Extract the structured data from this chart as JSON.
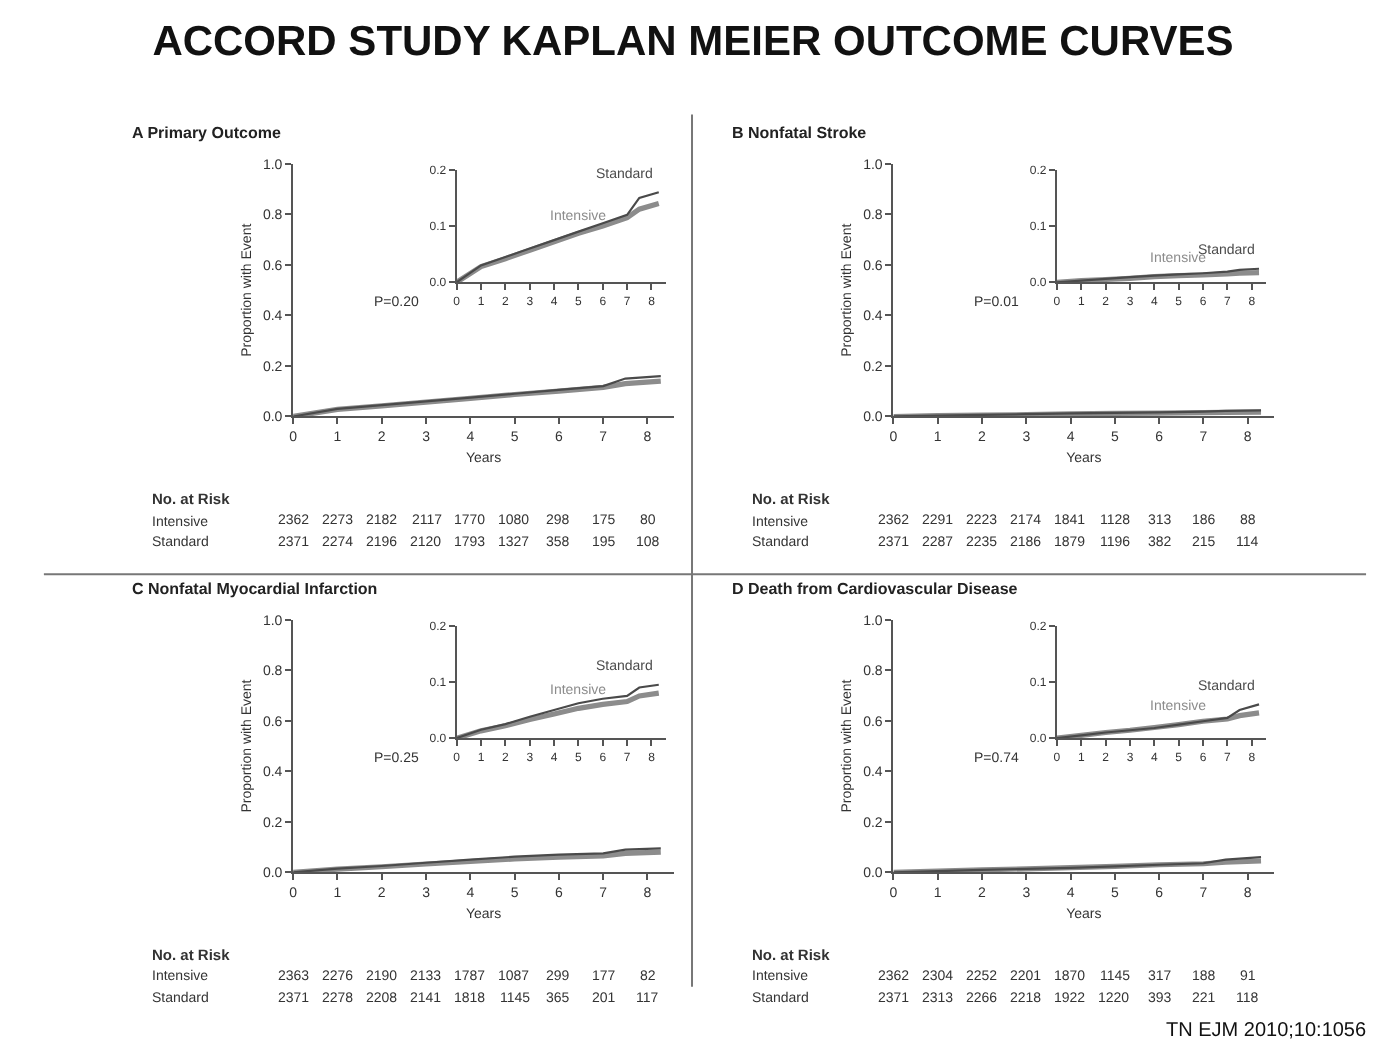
{
  "chart_data": [
    {
      "type": "other",
      "title": "ACCORD STUDY KAPLAN MEIER OUTCOME CURVES",
      "annotations": [
        "TN EJM 2010;10:1056"
      ]
    },
    {
      "type": "line",
      "title": "A Primary Outcome",
      "xlabel": "Years",
      "ylabel": "Proportion with Event",
      "x": [
        0,
        1,
        2,
        3,
        4,
        5,
        6,
        7,
        7.5,
        8.3
      ],
      "xlim": [
        0,
        8.6
      ],
      "xticks": [
        0,
        1,
        2,
        3,
        4,
        5,
        6,
        7,
        8
      ],
      "ylim": [
        0,
        1
      ],
      "yticks": [
        {
          "value": 0,
          "label": "0.0"
        },
        {
          "value": 0.2,
          "label": "0.2"
        },
        {
          "value": 0.4,
          "label": "0.4"
        },
        {
          "value": 0.6,
          "label": "0.6"
        },
        {
          "value": 0.8,
          "label": "0.8"
        },
        {
          "value": 1,
          "label": "1.0"
        }
      ],
      "series": [
        {
          "color": "#8c8c8c",
          "values": [
            0,
            0.028,
            0.042,
            0.057,
            0.072,
            0.087,
            0.1,
            0.115,
            0.13,
            0.14
          ]
        },
        {
          "color": "#4a4a4a",
          "values": [
            0,
            0.03,
            0.045,
            0.06,
            0.075,
            0.09,
            0.105,
            0.12,
            0.15,
            0.16
          ]
        }
      ],
      "annotations": [
        "P=0.20",
        "No. at Risk",
        "Intensive 2362 2273 2182 2117 1770 1080 298 175 80",
        "Standard 2371 2274 2196 2120 1793 1327 358 195 108"
      ]
    },
    {
      "type": "line",
      "x": [
        0,
        1,
        2,
        3,
        4,
        5,
        6,
        7,
        7.5,
        8.3
      ],
      "xlim": [
        0,
        8.6
      ],
      "xticks": [
        0,
        1,
        2,
        3,
        4,
        5,
        6,
        7,
        8
      ],
      "ylim": [
        0,
        0.2
      ],
      "yticks": [
        {
          "value": 0,
          "label": "0.0"
        },
        {
          "value": 0.1,
          "label": "0.1"
        },
        {
          "value": 0.2,
          "label": "0.2"
        }
      ],
      "series": [
        {
          "name": "Intensive",
          "color": "#8c8c8c",
          "values": [
            0,
            0.028,
            0.042,
            0.057,
            0.072,
            0.087,
            0.1,
            0.115,
            0.13,
            0.14
          ]
        },
        {
          "name": "Standard",
          "color": "#4a4a4a",
          "values": [
            0,
            0.03,
            0.045,
            0.06,
            0.075,
            0.09,
            0.105,
            0.12,
            0.15,
            0.16
          ]
        }
      ]
    },
    {
      "type": "line",
      "title": "B Nonfatal Stroke",
      "xlabel": "Years",
      "ylabel": "Proportion with Event",
      "x": [
        0,
        1,
        2,
        3,
        4,
        5,
        6,
        7,
        7.5,
        8.3
      ],
      "xlim": [
        0,
        8.6
      ],
      "xticks": [
        0,
        1,
        2,
        3,
        4,
        5,
        6,
        7,
        8
      ],
      "ylim": [
        0,
        1
      ],
      "yticks": [
        {
          "value": 0,
          "label": "0.0"
        },
        {
          "value": 0.2,
          "label": "0.2"
        },
        {
          "value": 0.4,
          "label": "0.4"
        },
        {
          "value": 0.6,
          "label": "0.6"
        },
        {
          "value": 0.8,
          "label": "0.8"
        },
        {
          "value": 1,
          "label": "1.0"
        }
      ],
      "series": [
        {
          "color": "#8c8c8c",
          "values": [
            0,
            0.003,
            0.005,
            0.007,
            0.01,
            0.012,
            0.013,
            0.015,
            0.016,
            0.017
          ]
        },
        {
          "color": "#4a4a4a",
          "values": [
            0,
            0.003,
            0.006,
            0.009,
            0.012,
            0.014,
            0.016,
            0.019,
            0.022,
            0.024
          ]
        }
      ],
      "annotations": [
        "P=0.01",
        "No. at Risk",
        "Intensive 2362 2291 2223 2174 1841 1128 313 186 88",
        "Standard 2371 2287 2235 2186 1879 1196 382 215 114"
      ]
    },
    {
      "type": "line",
      "x": [
        0,
        1,
        2,
        3,
        4,
        5,
        6,
        7,
        7.5,
        8.3
      ],
      "xlim": [
        0,
        8.6
      ],
      "xticks": [
        0,
        1,
        2,
        3,
        4,
        5,
        6,
        7,
        8
      ],
      "ylim": [
        0,
        0.2
      ],
      "yticks": [
        {
          "value": 0,
          "label": "0.0"
        },
        {
          "value": 0.1,
          "label": "0.1"
        },
        {
          "value": 0.2,
          "label": "0.2"
        }
      ],
      "series": [
        {
          "name": "Intensive",
          "color": "#8c8c8c",
          "values": [
            0,
            0.003,
            0.005,
            0.007,
            0.01,
            0.012,
            0.013,
            0.015,
            0.016,
            0.017
          ]
        },
        {
          "name": "Standard",
          "color": "#4a4a4a",
          "values": [
            0,
            0.003,
            0.006,
            0.009,
            0.012,
            0.014,
            0.016,
            0.019,
            0.022,
            0.024
          ]
        }
      ]
    },
    {
      "type": "line",
      "title": "C Nonfatal Myocardial Infarction",
      "xlabel": "Years",
      "ylabel": "Proportion with Event",
      "x": [
        0,
        1,
        2,
        3,
        4,
        5,
        6,
        7,
        7.5,
        8.3
      ],
      "xlim": [
        0,
        8.6
      ],
      "xticks": [
        0,
        1,
        2,
        3,
        4,
        5,
        6,
        7,
        8
      ],
      "ylim": [
        0,
        1
      ],
      "yticks": [
        {
          "value": 0,
          "label": "0.0"
        },
        {
          "value": 0.2,
          "label": "0.2"
        },
        {
          "value": 0.4,
          "label": "0.4"
        },
        {
          "value": 0.6,
          "label": "0.6"
        },
        {
          "value": 0.8,
          "label": "0.8"
        },
        {
          "value": 1,
          "label": "1.0"
        }
      ],
      "series": [
        {
          "color": "#8c8c8c",
          "values": [
            0,
            0.013,
            0.022,
            0.033,
            0.043,
            0.053,
            0.06,
            0.065,
            0.075,
            0.08
          ]
        },
        {
          "color": "#4a4a4a",
          "values": [
            0,
            0.015,
            0.025,
            0.038,
            0.05,
            0.062,
            0.07,
            0.075,
            0.09,
            0.095
          ]
        }
      ],
      "annotations": [
        "P=0.25",
        "No. at Risk",
        "Intensive 2363 2276 2190 2133 1787 1087 299 177 82",
        "Standard 2371 2278 2208 2141 1818 1145 365 201 117"
      ]
    },
    {
      "type": "line",
      "x": [
        0,
        1,
        2,
        3,
        4,
        5,
        6,
        7,
        7.5,
        8.3
      ],
      "xlim": [
        0,
        8.6
      ],
      "xticks": [
        0,
        1,
        2,
        3,
        4,
        5,
        6,
        7,
        8
      ],
      "ylim": [
        0,
        0.2
      ],
      "yticks": [
        {
          "value": 0,
          "label": "0.0"
        },
        {
          "value": 0.1,
          "label": "0.1"
        },
        {
          "value": 0.2,
          "label": "0.2"
        }
      ],
      "series": [
        {
          "name": "Intensive",
          "color": "#8c8c8c",
          "values": [
            0,
            0.013,
            0.022,
            0.033,
            0.043,
            0.053,
            0.06,
            0.065,
            0.075,
            0.08
          ]
        },
        {
          "name": "Standard",
          "color": "#4a4a4a",
          "values": [
            0,
            0.015,
            0.025,
            0.038,
            0.05,
            0.062,
            0.07,
            0.075,
            0.09,
            0.095
          ]
        }
      ]
    },
    {
      "type": "line",
      "title": "D Death from Cardiovascular Disease",
      "xlabel": "Years",
      "ylabel": "Proportion with Event",
      "x": [
        0,
        1,
        2,
        3,
        4,
        5,
        6,
        7,
        7.5,
        8.3
      ],
      "xlim": [
        0,
        8.6
      ],
      "xticks": [
        0,
        1,
        2,
        3,
        4,
        5,
        6,
        7,
        8
      ],
      "ylim": [
        0,
        1
      ],
      "yticks": [
        {
          "value": 0,
          "label": "0.0"
        },
        {
          "value": 0.2,
          "label": "0.2"
        },
        {
          "value": 0.4,
          "label": "0.4"
        },
        {
          "value": 0.6,
          "label": "0.6"
        },
        {
          "value": 0.8,
          "label": "0.8"
        },
        {
          "value": 1,
          "label": "1.0"
        }
      ],
      "series": [
        {
          "color": "#8c8c8c",
          "values": [
            0,
            0.005,
            0.01,
            0.014,
            0.019,
            0.024,
            0.03,
            0.034,
            0.04,
            0.045
          ]
        },
        {
          "color": "#4a4a4a",
          "values": [
            0,
            0.005,
            0.01,
            0.014,
            0.018,
            0.024,
            0.03,
            0.036,
            0.05,
            0.06
          ]
        }
      ],
      "annotations": [
        "P=0.74",
        "No. at Risk",
        "Intensive 2362 2304 2252 2201 1870 1145 317 188 91",
        "Standard 2371 2313 2266 2218 1922 1220 393 221 118"
      ]
    },
    {
      "type": "line",
      "x": [
        0,
        1,
        2,
        3,
        4,
        5,
        6,
        7,
        7.5,
        8.3
      ],
      "xlim": [
        0,
        8.6
      ],
      "xticks": [
        0,
        1,
        2,
        3,
        4,
        5,
        6,
        7,
        8
      ],
      "ylim": [
        0,
        0.2
      ],
      "yticks": [
        {
          "value": 0,
          "label": "0.0"
        },
        {
          "value": 0.1,
          "label": "0.1"
        },
        {
          "value": 0.2,
          "label": "0.2"
        }
      ],
      "series": [
        {
          "name": "Intensive",
          "color": "#8c8c8c",
          "values": [
            0,
            0.005,
            0.01,
            0.014,
            0.019,
            0.024,
            0.03,
            0.034,
            0.04,
            0.045
          ]
        },
        {
          "name": "Standard",
          "color": "#4a4a4a",
          "values": [
            0,
            0.005,
            0.01,
            0.014,
            0.018,
            0.024,
            0.03,
            0.036,
            0.05,
            0.06
          ]
        }
      ]
    }
  ]
}
